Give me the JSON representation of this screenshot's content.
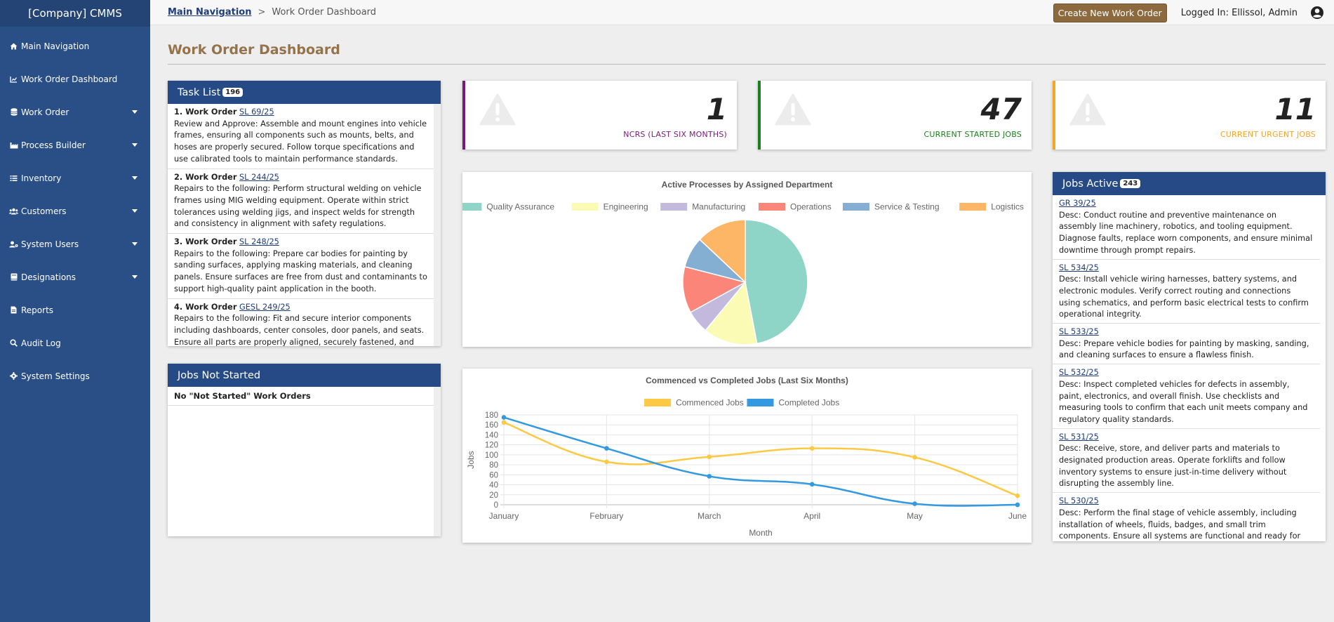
{
  "app": {
    "brand": "[Company] CMMS"
  },
  "sidebar": {
    "items": [
      {
        "label": "Main Navigation",
        "icon": "home-icon",
        "has_caret": false
      },
      {
        "label": "Work Order Dashboard",
        "icon": "chart-icon",
        "has_caret": false
      },
      {
        "label": "Work Order",
        "icon": "database-icon",
        "has_caret": true
      },
      {
        "label": "Process Builder",
        "icon": "industry-icon",
        "has_caret": true
      },
      {
        "label": "Inventory",
        "icon": "list-icon",
        "has_caret": true
      },
      {
        "label": "Customers",
        "icon": "users-icon",
        "has_caret": true
      },
      {
        "label": "System Users",
        "icon": "user-cog-icon",
        "has_caret": true
      },
      {
        "label": "Designations",
        "icon": "book-icon",
        "has_caret": true
      },
      {
        "label": "Reports",
        "icon": "file-icon",
        "has_caret": false
      },
      {
        "label": "Audit Log",
        "icon": "search-icon",
        "has_caret": false
      },
      {
        "label": "System Settings",
        "icon": "gear-icon",
        "has_caret": false
      }
    ]
  },
  "header": {
    "breadcrumb_root": "Main Navigation",
    "breadcrumb_sep": ">",
    "breadcrumb_current": "Work Order Dashboard",
    "create_button": "Create New Work Order",
    "logged_in": "Logged In: Ellissol, Admin"
  },
  "page": {
    "title": "Work Order Dashboard"
  },
  "task_list": {
    "title": "Task List",
    "count": "196",
    "items": [
      {
        "prefix": "1. Work Order",
        "id": "SL 69/25",
        "desc": "Review and Approve: Assemble and mount engines into vehicle frames, ensuring all components such as mounts, belts, and hoses are properly secured. Follow torque specifications and use calibrated tools to maintain performance standards."
      },
      {
        "prefix": "2. Work Order",
        "id": "SL 244/25",
        "desc": "Repairs to the following: Perform structural welding on vehicle frames using MIG welding equipment. Operate within strict tolerances using welding jigs, and inspect welds for strength and consistency in alignment with safety regulations."
      },
      {
        "prefix": "3. Work Order",
        "id": "SL 248/25",
        "desc": "Repairs to the following: Prepare car bodies for painting by sanding surfaces, applying masking materials, and cleaning panels. Ensure surfaces are free from dust and contaminants to support high-quality paint application in the booth."
      },
      {
        "prefix": "4. Work Order",
        "id": "GESL 249/25",
        "desc": "Repairs to the following: Fit and secure interior components including dashboards, center consoles, door panels, and seats. Ensure all parts are properly aligned, securely fastened, and meet aesthetic and"
      }
    ]
  },
  "jobs_not_started": {
    "title": "Jobs Not Started",
    "empty_text": "No \"Not Started\" Work Orders"
  },
  "stats": [
    {
      "value": "1",
      "label": "NCRS (LAST SIX MONTHS)",
      "color": "#7a1a7a"
    },
    {
      "value": "47",
      "label": "CURRENT STARTED JOBS",
      "color": "#1b7f1b"
    },
    {
      "value": "11",
      "label": "CURRENT URGENT JOBS",
      "color": "#f5a623"
    }
  ],
  "chart_data": [
    {
      "type": "pie",
      "title": "Active Processes by Assigned Department",
      "legend_position": "top",
      "categories": [
        "Quality Assurance",
        "Engineering",
        "Manufacturing",
        "Operations",
        "Service & Testing",
        "Logistics"
      ],
      "values": [
        47,
        14,
        6,
        12,
        8,
        13
      ],
      "colors": [
        "#8fd5c7",
        "#fbfbb6",
        "#c2b9dc",
        "#fb8579",
        "#84afd3",
        "#fcb665"
      ]
    },
    {
      "type": "line",
      "title": "Commenced vs Completed Jobs (Last Six Months)",
      "xlabel": "Month",
      "ylabel": "Jobs",
      "legend_position": "top",
      "categories": [
        "January",
        "February",
        "March",
        "April",
        "May",
        "June"
      ],
      "ylim": [
        0,
        180
      ],
      "yticks": [
        0,
        20,
        40,
        60,
        80,
        100,
        120,
        140,
        160,
        180
      ],
      "grid": true,
      "series": [
        {
          "name": "Commenced Jobs",
          "color": "#fcc945",
          "values": [
            165,
            86,
            96,
            113,
            95,
            18
          ]
        },
        {
          "name": "Completed Jobs",
          "color": "#3399e0",
          "values": [
            175,
            113,
            57,
            41,
            2,
            0
          ]
        }
      ]
    }
  ],
  "jobs_active": {
    "title": "Jobs Active",
    "count": "243",
    "items": [
      {
        "id": "GR 39/25",
        "desc": "Desc: Conduct routine and preventive maintenance on assembly line machinery, robotics, and tooling equipment. Diagnose faults, replace worn components, and ensure minimal downtime through prompt repairs."
      },
      {
        "id": "SL 534/25",
        "desc": "Desc: Install vehicle wiring harnesses, battery systems, and electronic modules. Verify correct routing and connections using schematics, and perform basic electrical tests to confirm operational integrity."
      },
      {
        "id": "SL 533/25",
        "desc": "Desc: Prepare vehicle bodies for painting by masking, sanding, and cleaning surfaces to ensure a flawless finish."
      },
      {
        "id": "SL 532/25",
        "desc": "Desc: Inspect completed vehicles for defects in assembly, paint, electronics, and overall finish. Use checklists and measuring tools to confirm that each unit meets company and regulatory quality standards."
      },
      {
        "id": "SL 531/25",
        "desc": "Desc: Receive, store, and deliver parts and materials to designated production areas. Operate forklifts and follow inventory systems to ensure just-in-time delivery without disrupting the assembly line."
      },
      {
        "id": "SL 530/25",
        "desc": "Desc: Perform the final stage of vehicle assembly, including installation of wheels, fluids, badges, and small trim components. Ensure all systems are functional and ready for inspection prior to delivery or testing."
      }
    ]
  }
}
